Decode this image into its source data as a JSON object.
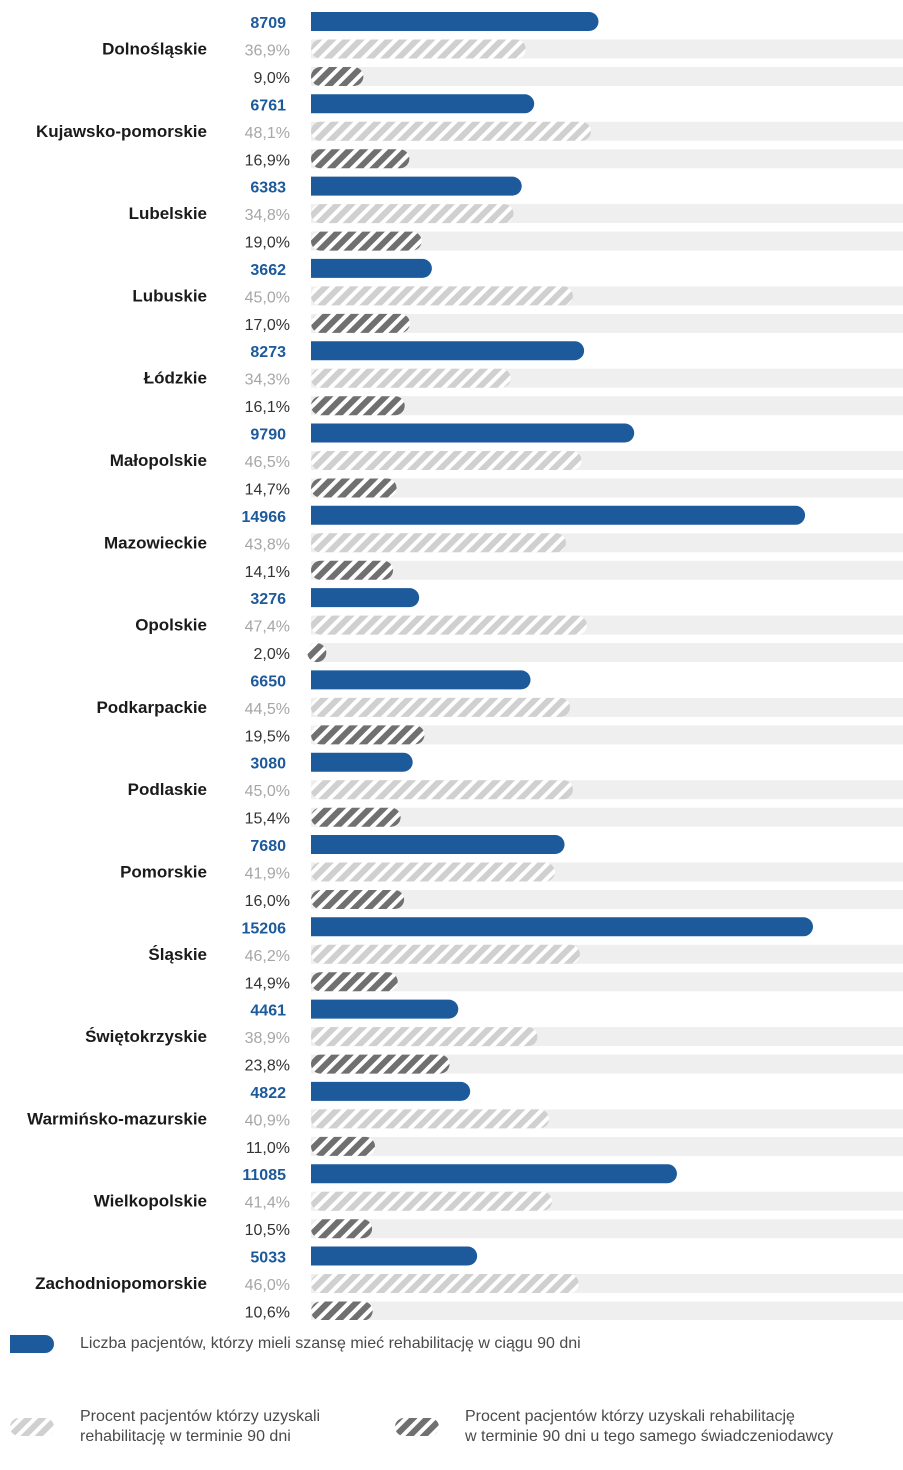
{
  "chart_data": {
    "type": "bar",
    "categories": [
      "Dolnośląskie",
      "Kujawsko-pomorskie",
      "Lubelskie",
      "Lubuskie",
      "Łódzkie",
      "Małopolskie",
      "Mazowieckie",
      "Opolskie",
      "Podkarpackie",
      "Podlaskie",
      "Pomorskie",
      "Śląskie",
      "Świętokrzyskie",
      "Warmińsko-mazurskie",
      "Wielkopolskie",
      "Zachodniopomorskie"
    ],
    "series": [
      {
        "name": "Liczba pacjentów, którzy mieli szansę mieć rehabilitację w ciągu 90 dni",
        "values": [
          8709,
          6761,
          6383,
          3662,
          8273,
          9790,
          14966,
          3276,
          6650,
          3080,
          7680,
          15206,
          4461,
          4822,
          11085,
          5033
        ],
        "labels": [
          "8709",
          "6761",
          "6383",
          "3662",
          "8273",
          "9790",
          "14966",
          "3276",
          "6650",
          "3080",
          "7680",
          "15206",
          "4461",
          "4822",
          "11085",
          "5033"
        ],
        "color": "#1c5a9c"
      },
      {
        "name": "Procent pacjentów którzy uzyskali rehabilitację w terminie 90 dni",
        "values": [
          36.9,
          48.1,
          34.8,
          45.0,
          34.3,
          46.5,
          43.8,
          47.4,
          44.5,
          45.0,
          41.9,
          46.2,
          38.9,
          40.9,
          41.4,
          46.0
        ],
        "labels": [
          "36,9%",
          "48,1%",
          "34,8%",
          "45,0%",
          "34,3%",
          "46,5%",
          "43,8%",
          "47,4%",
          "44,5%",
          "45,0%",
          "41,9%",
          "46,2%",
          "38,9%",
          "40,9%",
          "41,4%",
          "46,0%"
        ],
        "color": "#d0d0d0"
      },
      {
        "name": "Procent pacjentów którzy uzyskali rehabilitację w terminie 90 dni u tego samego świadczeniodawcy",
        "values": [
          9.0,
          16.9,
          19.0,
          17.0,
          16.1,
          14.7,
          14.1,
          2.0,
          19.5,
          15.4,
          16.0,
          14.9,
          23.8,
          11.0,
          10.5,
          10.6
        ],
        "labels": [
          "9,0%",
          "16,9%",
          "19,0%",
          "17,0%",
          "16,1%",
          "14,7%",
          "14,1%",
          "2,0%",
          "19,5%",
          "15,4%",
          "16,0%",
          "14,9%",
          "23,8%",
          "11,0%",
          "10,5%",
          "10,6%"
        ],
        "color": "#707070"
      }
    ],
    "colors": {
      "count_text": "#1c5a9c",
      "pct1_text": "#a6a6a6",
      "pct2_text": "#333333",
      "track": "#efefef",
      "label": "#1a1a1a"
    },
    "legend_position": "bottom"
  },
  "legend": {
    "count": "Liczba pacjentów, którzy mieli szansę mieć rehabilitację w ciągu 90 dni",
    "pct1_line1": "Procent pacjentów którzy uzyskali",
    "pct1_line2": "rehabilitację w terminie 90 dni",
    "pct2_line1": "Procent pacjentów którzy uzyskali rehabilitację",
    "pct2_line2": "w terminie 90 dni u tego samego świadczeniodawcy"
  }
}
